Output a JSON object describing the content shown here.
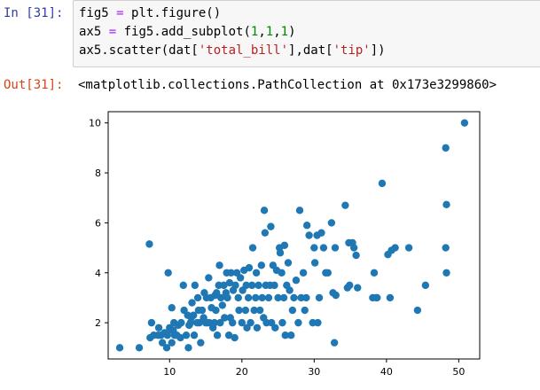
{
  "cell": {
    "in_prompt": "In [31]:",
    "out_prompt": "Out[31]:",
    "code_lines": [
      [
        {
          "t": "fig5 "
        },
        {
          "t": "=",
          "c": "tok-op"
        },
        {
          "t": " plt.figure()"
        }
      ],
      [
        {
          "t": "ax5 "
        },
        {
          "t": "=",
          "c": "tok-op"
        },
        {
          "t": " fig5.add_subplot("
        },
        {
          "t": "1",
          "c": "tok-num"
        },
        {
          "t": ","
        },
        {
          "t": "1",
          "c": "tok-num"
        },
        {
          "t": ","
        },
        {
          "t": "1",
          "c": "tok-num"
        },
        {
          "t": ")"
        }
      ],
      [
        {
          "t": "ax5.scatter(dat["
        },
        {
          "t": "'total_bill'",
          "c": "tok-str"
        },
        {
          "t": "],dat["
        },
        {
          "t": "'tip'",
          "c": "tok-str"
        },
        {
          "t": "])"
        }
      ]
    ],
    "output_text": "<matplotlib.collections.PathCollection at 0x173e3299860>"
  },
  "colors": {
    "marker": "#1f77b4",
    "in_prompt": "#303f9f",
    "out_prompt": "#d84315"
  },
  "chart_data": {
    "type": "scatter",
    "title": "",
    "xlabel": "",
    "ylabel": "",
    "xlim": [
      1.5,
      52.9
    ],
    "ylim": [
      0.55,
      10.45
    ],
    "xticks": [
      10,
      20,
      30,
      40,
      50
    ],
    "yticks": [
      2,
      4,
      6,
      8,
      10
    ],
    "grid": false,
    "series": [
      {
        "points": [
          [
            3.1,
            1.0
          ],
          [
            5.8,
            1.0
          ],
          [
            7.2,
            5.15
          ],
          [
            7.3,
            1.4
          ],
          [
            7.5,
            2.0
          ],
          [
            7.8,
            1.5
          ],
          [
            8.4,
            1.5
          ],
          [
            8.5,
            1.8
          ],
          [
            8.8,
            1.5
          ],
          [
            9.0,
            1.2
          ],
          [
            9.3,
            1.6
          ],
          [
            9.6,
            1.0
          ],
          [
            9.7,
            1.5
          ],
          [
            9.8,
            4.0
          ],
          [
            10.0,
            1.8
          ],
          [
            10.1,
            1.7
          ],
          [
            10.3,
            1.2
          ],
          [
            10.5,
            1.7
          ],
          [
            10.6,
            2.0
          ],
          [
            10.7,
            1.5
          ],
          [
            10.3,
            2.6
          ],
          [
            11.0,
            1.5
          ],
          [
            11.2,
            1.9
          ],
          [
            11.5,
            1.4
          ],
          [
            11.6,
            2.0
          ],
          [
            11.9,
            3.5
          ],
          [
            12.0,
            2.5
          ],
          [
            12.3,
            1.5
          ],
          [
            12.5,
            2.3
          ],
          [
            12.6,
            1.0
          ],
          [
            12.7,
            1.9
          ],
          [
            12.9,
            2.0
          ],
          [
            13.0,
            2.2
          ],
          [
            13.1,
            2.8
          ],
          [
            13.3,
            2.3
          ],
          [
            13.4,
            1.5
          ],
          [
            13.5,
            3.5
          ],
          [
            13.8,
            2.0
          ],
          [
            13.9,
            3.0
          ],
          [
            14.0,
            2.5
          ],
          [
            14.1,
            2.0
          ],
          [
            14.3,
            1.2
          ],
          [
            14.5,
            2.5
          ],
          [
            14.7,
            2.2
          ],
          [
            14.8,
            3.2
          ],
          [
            15.0,
            2.0
          ],
          [
            15.1,
            3.0
          ],
          [
            15.2,
            2.0
          ],
          [
            15.4,
            3.8
          ],
          [
            15.5,
            2.0
          ],
          [
            15.7,
            3.0
          ],
          [
            15.8,
            2.6
          ],
          [
            16.0,
            1.8
          ],
          [
            16.2,
            2.0
          ],
          [
            16.3,
            3.1
          ],
          [
            16.4,
            2.5
          ],
          [
            16.5,
            3.2
          ],
          [
            16.6,
            1.5
          ],
          [
            16.8,
            3.5
          ],
          [
            16.9,
            4.3
          ],
          [
            17.0,
            2.0
          ],
          [
            17.1,
            3.0
          ],
          [
            17.3,
            2.7
          ],
          [
            17.5,
            3.5
          ],
          [
            17.6,
            2.2
          ],
          [
            17.8,
            3.2
          ],
          [
            17.9,
            4.0
          ],
          [
            18.0,
            3.0
          ],
          [
            18.2,
            1.5
          ],
          [
            18.3,
            3.6
          ],
          [
            18.4,
            2.2
          ],
          [
            18.5,
            4.0
          ],
          [
            18.7,
            2.0
          ],
          [
            18.8,
            3.3
          ],
          [
            19.0,
            1.4
          ],
          [
            19.1,
            3.5
          ],
          [
            19.3,
            4.0
          ],
          [
            19.5,
            3.0
          ],
          [
            19.6,
            2.5
          ],
          [
            19.8,
            3.8
          ],
          [
            20.0,
            2.0
          ],
          [
            20.1,
            3.3
          ],
          [
            20.3,
            4.1
          ],
          [
            20.5,
            2.5
          ],
          [
            20.6,
            3.5
          ],
          [
            20.7,
            1.8
          ],
          [
            20.9,
            3.0
          ],
          [
            21.0,
            4.2
          ],
          [
            21.2,
            2.0
          ],
          [
            21.4,
            3.5
          ],
          [
            21.5,
            5.0
          ],
          [
            21.7,
            2.5
          ],
          [
            21.9,
            3.0
          ],
          [
            22.0,
            4.0
          ],
          [
            22.1,
            1.8
          ],
          [
            22.3,
            3.5
          ],
          [
            22.5,
            2.5
          ],
          [
            22.7,
            4.3
          ],
          [
            22.8,
            3.0
          ],
          [
            23.0,
            2.2
          ],
          [
            23.1,
            6.5
          ],
          [
            23.2,
            5.6
          ],
          [
            23.3,
            3.5
          ],
          [
            23.4,
            2.0
          ],
          [
            23.7,
            3.0
          ],
          [
            23.9,
            3.5
          ],
          [
            24.0,
            5.85
          ],
          [
            24.1,
            2.0
          ],
          [
            24.3,
            4.3
          ],
          [
            24.5,
            3.5
          ],
          [
            24.6,
            1.8
          ],
          [
            24.8,
            4.1
          ],
          [
            25.0,
            3.0
          ],
          [
            25.2,
            5.0
          ],
          [
            25.3,
            4.8
          ],
          [
            25.5,
            4.0
          ],
          [
            25.6,
            2.0
          ],
          [
            25.8,
            3.0
          ],
          [
            25.9,
            5.1
          ],
          [
            26.0,
            1.5
          ],
          [
            26.2,
            3.5
          ],
          [
            26.4,
            4.4
          ],
          [
            26.6,
            3.3
          ],
          [
            26.8,
            1.5
          ],
          [
            27.0,
            2.5
          ],
          [
            27.2,
            3.0
          ],
          [
            27.5,
            3.7
          ],
          [
            27.8,
            2.0
          ],
          [
            28.0,
            6.5
          ],
          [
            28.2,
            3.0
          ],
          [
            28.5,
            4.0
          ],
          [
            28.7,
            2.5
          ],
          [
            28.9,
            3.0
          ],
          [
            29.0,
            5.9
          ],
          [
            29.3,
            5.5
          ],
          [
            29.8,
            2.0
          ],
          [
            30.0,
            5.0
          ],
          [
            30.1,
            4.4
          ],
          [
            30.4,
            5.5
          ],
          [
            30.5,
            2.0
          ],
          [
            30.7,
            3.0
          ],
          [
            31.0,
            5.6
          ],
          [
            31.3,
            5.0
          ],
          [
            31.6,
            4.0
          ],
          [
            31.9,
            4.0
          ],
          [
            32.4,
            6.0
          ],
          [
            32.6,
            3.2
          ],
          [
            32.8,
            1.2
          ],
          [
            32.9,
            5.0
          ],
          [
            33.0,
            3.1
          ],
          [
            34.3,
            6.7
          ],
          [
            34.6,
            3.4
          ],
          [
            34.8,
            5.2
          ],
          [
            34.9,
            3.5
          ],
          [
            35.3,
            5.2
          ],
          [
            35.5,
            5.0
          ],
          [
            35.8,
            4.7
          ],
          [
            36.0,
            3.4
          ],
          [
            38.1,
            3.0
          ],
          [
            38.3,
            4.0
          ],
          [
            38.6,
            3.0
          ],
          [
            38.7,
            3.0
          ],
          [
            39.4,
            7.58
          ],
          [
            40.2,
            4.73
          ],
          [
            40.5,
            3.0
          ],
          [
            40.7,
            4.9
          ],
          [
            41.2,
            5.0
          ],
          [
            43.1,
            5.0
          ],
          [
            44.3,
            2.5
          ],
          [
            45.4,
            3.5
          ],
          [
            48.2,
            9.0
          ],
          [
            48.3,
            6.73
          ],
          [
            48.2,
            5.0
          ],
          [
            48.3,
            4.0
          ],
          [
            50.8,
            10.0
          ]
        ]
      }
    ]
  }
}
